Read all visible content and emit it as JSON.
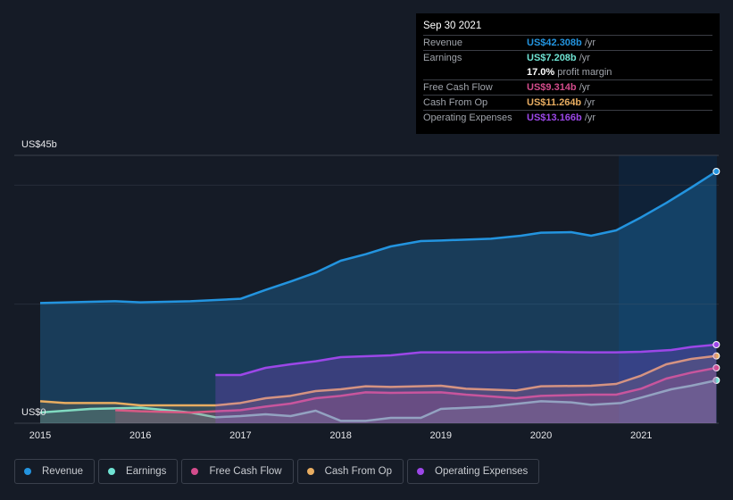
{
  "chart_data": {
    "type": "area",
    "ylabel_top": "US$45b",
    "ylabel_bottom": "US$0",
    "ylim": [
      0,
      45
    ],
    "xlim": [
      2015,
      2021.75
    ],
    "x_ticks": [
      "2015",
      "2016",
      "2017",
      "2018",
      "2019",
      "2020",
      "2021"
    ],
    "colors": {
      "Revenue": "#2394df",
      "Earnings": "#6fe3d3",
      "Free Cash Flow": "#d44c8c",
      "Cash From Op": "#e8ad61",
      "Operating Expenses": "#9c47e8"
    },
    "series": [
      {
        "name": "Revenue",
        "x": [
          2015,
          2015.5,
          2015.75,
          2016,
          2016.5,
          2017,
          2017.25,
          2017.5,
          2017.75,
          2018,
          2018.25,
          2018.5,
          2018.8,
          2019,
          2019.5,
          2019.8,
          2020,
          2020.3,
          2020.5,
          2020.75,
          2021,
          2021.25,
          2021.5,
          2021.75
        ],
        "values": [
          20.2,
          20.4,
          20.5,
          20.3,
          20.5,
          20.9,
          22.4,
          23.8,
          25.3,
          27.3,
          28.4,
          29.7,
          30.6,
          30.7,
          31.0,
          31.5,
          32.0,
          32.1,
          31.5,
          32.4,
          34.6,
          37.0,
          39.6,
          42.3
        ]
      },
      {
        "name": "Earnings",
        "x": [
          2015,
          2015.5,
          2016,
          2016.5,
          2016.75,
          2017,
          2017.25,
          2017.5,
          2017.75,
          2018,
          2018.25,
          2018.5,
          2018.8,
          2019,
          2019.5,
          2020,
          2020.3,
          2020.5,
          2020.8,
          2021,
          2021.3,
          2021.5,
          2021.75
        ],
        "values": [
          1.8,
          2.4,
          2.6,
          1.8,
          1.0,
          1.2,
          1.5,
          1.2,
          2.1,
          0.4,
          0.4,
          0.9,
          0.9,
          2.4,
          2.8,
          3.7,
          3.5,
          3.1,
          3.4,
          4.3,
          5.7,
          6.3,
          7.2
        ]
      },
      {
        "name": "Free Cash Flow",
        "x": [
          2015.75,
          2016,
          2016.5,
          2017,
          2017.25,
          2017.5,
          2017.75,
          2018,
          2018.25,
          2018.5,
          2019,
          2019.25,
          2019.75,
          2020,
          2020.5,
          2020.75,
          2021,
          2021.25,
          2021.5,
          2021.75
        ],
        "values": [
          2.2,
          2.0,
          1.8,
          2.2,
          2.8,
          3.3,
          4.2,
          4.6,
          5.2,
          5.1,
          5.2,
          4.8,
          4.2,
          4.6,
          4.8,
          4.8,
          5.8,
          7.5,
          8.5,
          9.3
        ]
      },
      {
        "name": "Cash From Op",
        "x": [
          2015,
          2015.25,
          2015.75,
          2016,
          2016.5,
          2016.75,
          2017,
          2017.25,
          2017.5,
          2017.75,
          2018,
          2018.25,
          2018.5,
          2019,
          2019.25,
          2019.75,
          2020,
          2020.5,
          2020.75,
          2021,
          2021.25,
          2021.5,
          2021.75
        ],
        "values": [
          3.7,
          3.4,
          3.4,
          3.0,
          3.0,
          3.0,
          3.4,
          4.2,
          4.6,
          5.4,
          5.7,
          6.2,
          6.1,
          6.3,
          5.8,
          5.5,
          6.2,
          6.3,
          6.6,
          8.0,
          9.9,
          10.8,
          11.3
        ]
      },
      {
        "name": "Operating Expenses",
        "x": [
          2016.75,
          2017,
          2017.25,
          2017.5,
          2017.75,
          2018,
          2018.5,
          2018.8,
          2019.5,
          2020,
          2020.5,
          2020.75,
          2021,
          2021.3,
          2021.5,
          2021.75
        ],
        "values": [
          8.1,
          8.1,
          9.3,
          9.9,
          10.4,
          11.1,
          11.4,
          11.9,
          11.9,
          12.0,
          11.9,
          11.9,
          12.0,
          12.3,
          12.8,
          13.2
        ]
      }
    ]
  },
  "tooltip": {
    "date": "Sep 30 2021",
    "rows": [
      {
        "label": "Revenue",
        "value": "US$42.308b",
        "unit": "/yr"
      },
      {
        "label": "Earnings",
        "value": "US$7.208b",
        "unit": "/yr"
      },
      {
        "label": "",
        "value": "17.0%",
        "unit": "profit margin"
      },
      {
        "label": "Free Cash Flow",
        "value": "US$9.314b",
        "unit": "/yr"
      },
      {
        "label": "Cash From Op",
        "value": "US$11.264b",
        "unit": "/yr"
      },
      {
        "label": "Operating Expenses",
        "value": "US$13.166b",
        "unit": "/yr"
      }
    ]
  },
  "legend": [
    "Revenue",
    "Earnings",
    "Free Cash Flow",
    "Cash From Op",
    "Operating Expenses"
  ]
}
